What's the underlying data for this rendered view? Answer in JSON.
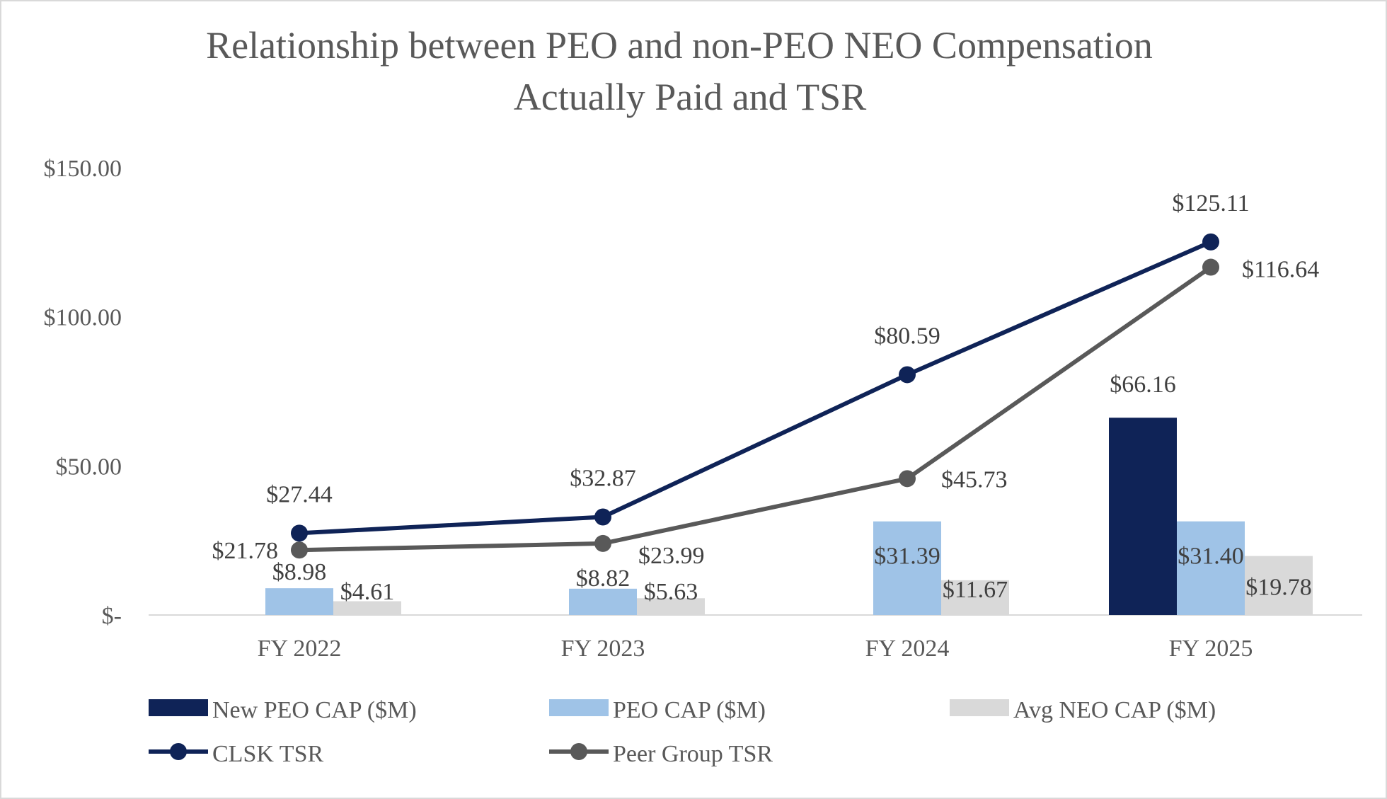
{
  "chart_data": {
    "type": "bar",
    "title": "Relationship between PEO and non-PEO NEO Compensation",
    "title_line2": "Actually Paid and TSR",
    "categories": [
      "FY 2022",
      "FY 2023",
      "FY 2024",
      "FY 2025"
    ],
    "y_ticks": [
      "$150.00",
      "$100.00",
      "$50.00",
      "$-"
    ],
    "y_tick_values": [
      150,
      100,
      50,
      0
    ],
    "ylim": [
      0,
      150
    ],
    "grid": false,
    "legend_position": "bottom",
    "bar_series": [
      {
        "name": "New PEO CAP ($M)",
        "color": "#0f2357",
        "values": [
          null,
          null,
          null,
          66.16
        ],
        "labels": [
          "",
          "",
          "",
          "$66.16"
        ]
      },
      {
        "name": "PEO CAP ($M)",
        "color": "#9fc3e7",
        "values": [
          8.98,
          8.82,
          31.39,
          31.4
        ],
        "labels": [
          "$8.98",
          "$8.82",
          "$31.39",
          "$31.40"
        ]
      },
      {
        "name": "Avg NEO CAP ($M)",
        "color": "#d9d9d9",
        "values": [
          4.61,
          5.63,
          11.67,
          19.78
        ],
        "labels": [
          "$4.61",
          "$5.63",
          "$11.67",
          "$19.78"
        ]
      }
    ],
    "line_series": [
      {
        "name": "CLSK TSR",
        "color": "#0f2357",
        "values": [
          27.44,
          32.87,
          80.59,
          125.11
        ],
        "labels": [
          "$27.44",
          "$32.87",
          "$80.59",
          "$125.11"
        ]
      },
      {
        "name": "Peer Group TSR",
        "color": "#595959",
        "values": [
          21.78,
          23.99,
          45.73,
          116.64
        ],
        "labels": [
          "$21.78",
          "$23.99",
          "$45.73",
          "$116.64"
        ]
      }
    ]
  }
}
